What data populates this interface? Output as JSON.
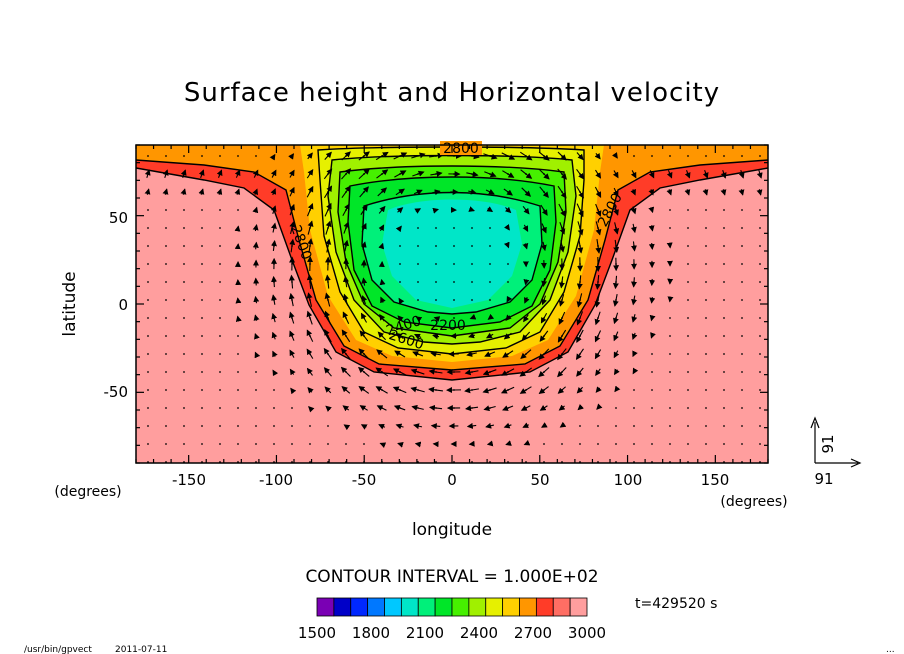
{
  "chart_data": {
    "type": "contour",
    "title": "Surface height and Horizontal velocity",
    "xlabel": "longitude",
    "ylabel": "latitude",
    "x_unit": "(degrees)",
    "y_unit": "(degrees)",
    "xlim": [
      -180,
      180
    ],
    "ylim": [
      -90,
      90
    ],
    "xticks": [
      "-150",
      "-100",
      "-50",
      "0",
      "50",
      "100",
      "150"
    ],
    "yticks": [
      "50",
      "0",
      "-50"
    ],
    "xtick_values": [
      -150,
      -100,
      -50,
      0,
      50,
      100,
      150
    ],
    "ytick_values": [
      50,
      0,
      -50
    ],
    "contour_interval_text": "CONTOUR INTERVAL = 1.000E+02",
    "contour_labels": [
      "2800",
      "2800",
      "2800",
      "2200",
      "2400",
      "2600"
    ],
    "colorbar": {
      "levels": [
        "1500",
        "1800",
        "2100",
        "2400",
        "2700",
        "3000"
      ],
      "colors": [
        "#7a00b4",
        "#0000c8",
        "#0028ff",
        "#0078ff",
        "#00c8ff",
        "#00e6c8",
        "#00f07a",
        "#00e628",
        "#46f000",
        "#a0f000",
        "#e6f000",
        "#ffd000",
        "#ff9600",
        "#ff3c28",
        "#ff6e64",
        "#ff9e9e"
      ]
    },
    "vector_reference": {
      "x_label": "91",
      "y_label": "91"
    },
    "time_label": "t=429520 s"
  },
  "footer": {
    "program": "/usr/bin/gpvect",
    "date": "2011-07-11",
    "ellipsis": "..."
  }
}
